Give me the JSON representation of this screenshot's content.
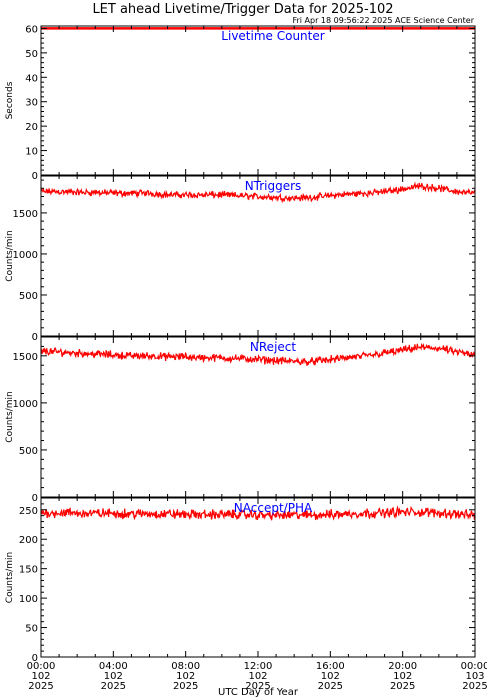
{
  "title": "LET ahead Livetime/Trigger Data for 2025-102",
  "subtitle": "Fri Apr 18 09:56:22 2025 ACE Science Center",
  "xlabel": "UTC Day of Year",
  "colors": {
    "series": "#ff0000",
    "label": "#0000ff",
    "axis": "#000000"
  },
  "x_ticks": [
    {
      "time": "00:00",
      "doy": "102",
      "year": "2025"
    },
    {
      "time": "04:00",
      "doy": "102",
      "year": "2025"
    },
    {
      "time": "08:00",
      "doy": "102",
      "year": "2025"
    },
    {
      "time": "12:00",
      "doy": "102",
      "year": "2025"
    },
    {
      "time": "16:00",
      "doy": "102",
      "year": "2025"
    },
    {
      "time": "20:00",
      "doy": "102",
      "year": "2025"
    },
    {
      "time": "00:00",
      "doy": "103",
      "year": "2025"
    }
  ],
  "chart_data": [
    {
      "type": "line",
      "label": "Livetime Counter",
      "ylabel": "Seconds",
      "xlim": [
        0,
        24
      ],
      "ylim": [
        0,
        61
      ],
      "yticks": [
        0,
        10,
        20,
        30,
        40,
        50,
        60
      ],
      "series": [
        {
          "x": [
            0,
            24
          ],
          "y": [
            60,
            60
          ]
        }
      ]
    },
    {
      "type": "line",
      "label": "NTriggers",
      "ylabel": "Counts/min",
      "xlim": [
        0,
        24
      ],
      "ylim": [
        0,
        1950
      ],
      "yticks": [
        0,
        500,
        1000,
        1500
      ],
      "series": [
        {
          "x": [
            0,
            1,
            2,
            3,
            4,
            5,
            6,
            7,
            8,
            9,
            10,
            11,
            12,
            13,
            14,
            15,
            16,
            17,
            18,
            19,
            20,
            21,
            22,
            23,
            24
          ],
          "y": [
            1760,
            1760,
            1750,
            1750,
            1740,
            1740,
            1740,
            1720,
            1720,
            1720,
            1720,
            1710,
            1700,
            1690,
            1680,
            1690,
            1710,
            1730,
            1740,
            1760,
            1790,
            1830,
            1800,
            1760,
            1740
          ],
          "noise": 50
        }
      ]
    },
    {
      "type": "line",
      "label": "NReject",
      "ylabel": "Counts/min",
      "xlim": [
        0,
        24
      ],
      "ylim": [
        0,
        1700
      ],
      "yticks": [
        0,
        500,
        1000,
        1500
      ],
      "series": [
        {
          "x": [
            0,
            1,
            2,
            3,
            4,
            5,
            6,
            7,
            8,
            9,
            10,
            11,
            12,
            13,
            14,
            15,
            16,
            17,
            18,
            19,
            20,
            21,
            22,
            23,
            24
          ],
          "y": [
            1550,
            1540,
            1530,
            1520,
            1510,
            1500,
            1500,
            1490,
            1490,
            1480,
            1480,
            1470,
            1460,
            1450,
            1440,
            1440,
            1460,
            1480,
            1500,
            1530,
            1560,
            1590,
            1580,
            1540,
            1500
          ],
          "noise": 50
        }
      ]
    },
    {
      "type": "line",
      "label": "NAccept/PHA",
      "ylabel": "Counts/min",
      "xlim": [
        0,
        24
      ],
      "ylim": [
        0,
        270
      ],
      "yticks": [
        0,
        50,
        100,
        150,
        200,
        250
      ],
      "series": [
        {
          "x": [
            0,
            1,
            2,
            3,
            4,
            5,
            6,
            7,
            8,
            9,
            10,
            11,
            12,
            13,
            14,
            15,
            16,
            17,
            18,
            19,
            20,
            21,
            22,
            23,
            24
          ],
          "y": [
            245,
            245,
            244,
            244,
            244,
            243,
            243,
            243,
            242,
            242,
            242,
            242,
            241,
            241,
            241,
            241,
            242,
            243,
            244,
            245,
            246,
            246,
            245,
            243,
            240
          ],
          "noise": 10
        }
      ]
    }
  ]
}
